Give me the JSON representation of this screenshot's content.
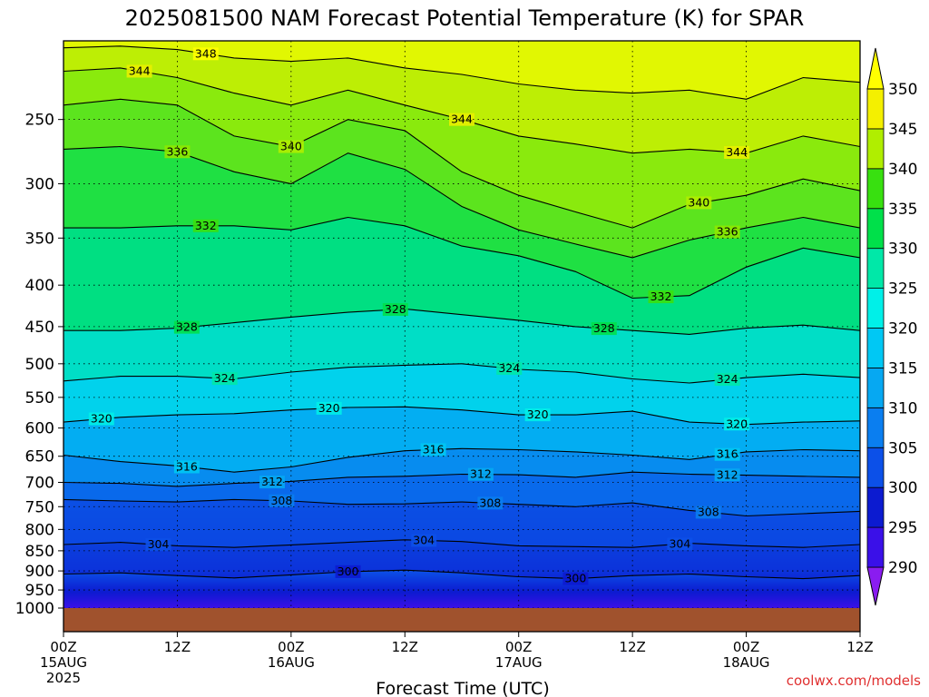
{
  "chart_data": {
    "type": "heatmap",
    "title": "2025081500 NAM Forecast Potential Temperature (K) for SPAR",
    "xlabel": "Forecast Time (UTC)",
    "ylabel": "",
    "credit": "coolwx.com/models",
    "x_ticks": [
      {
        "hour": 0,
        "lines": [
          "00Z",
          "15AUG",
          "2025"
        ]
      },
      {
        "hour": 12,
        "lines": [
          "12Z"
        ]
      },
      {
        "hour": 24,
        "lines": [
          "00Z",
          "16AUG"
        ]
      },
      {
        "hour": 36,
        "lines": [
          "12Z"
        ]
      },
      {
        "hour": 48,
        "lines": [
          "00Z",
          "17AUG"
        ]
      },
      {
        "hour": 60,
        "lines": [
          "12Z"
        ]
      },
      {
        "hour": 72,
        "lines": [
          "00Z",
          "18AUG"
        ]
      },
      {
        "hour": 84,
        "lines": [
          "12Z"
        ]
      }
    ],
    "xlim": [
      0,
      84
    ],
    "y_ticks": [
      250,
      300,
      350,
      400,
      450,
      500,
      550,
      600,
      650,
      700,
      750,
      800,
      850,
      900,
      950,
      1000
    ],
    "y_label_ticks": [
      "250",
      "300",
      "350",
      "400",
      "450",
      "500",
      "550",
      "600",
      "650",
      "700",
      "750",
      "800",
      "850",
      "900",
      "950",
      "1000"
    ],
    "ylim": [
      1000,
      200
    ],
    "y_scale": "log pressure (hPa)",
    "grid": true,
    "surface_color": "#a0522d",
    "colorbar": {
      "levels": [
        290,
        295,
        300,
        305,
        310,
        315,
        320,
        325,
        330,
        335,
        340,
        345,
        350
      ],
      "labels": [
        "290",
        "295",
        "300",
        "305",
        "310",
        "315",
        "320",
        "325",
        "330",
        "335",
        "340",
        "345",
        "350"
      ],
      "colors": [
        "#8a1cf0",
        "#3a10e8",
        "#0c1bd0",
        "#0c50e8",
        "#0a7ef0",
        "#06a8f2",
        "#00c8f4",
        "#00f0e8",
        "#00e8a8",
        "#00e04a",
        "#38e010",
        "#b0ee00",
        "#f4f000",
        "#ffff00"
      ]
    },
    "contour_series": [
      {
        "value": 300,
        "label": "300",
        "pressures": [
          908,
          905,
          912,
          918,
          910,
          902,
          898,
          905,
          915,
          920,
          912,
          908,
          915,
          920,
          912
        ]
      },
      {
        "value": 304,
        "label": "304",
        "pressures": [
          835,
          830,
          838,
          842,
          836,
          830,
          824,
          828,
          838,
          840,
          842,
          832,
          838,
          842,
          835
        ]
      },
      {
        "value": 308,
        "label": "308",
        "pressures": [
          735,
          738,
          740,
          735,
          738,
          745,
          744,
          740,
          745,
          750,
          742,
          758,
          770,
          765,
          760
        ]
      },
      {
        "value": 312,
        "label": "312",
        "pressures": [
          700,
          702,
          708,
          702,
          698,
          690,
          688,
          684,
          685,
          690,
          680,
          684,
          686,
          688,
          690
        ]
      },
      {
        "value": 316,
        "label": "316",
        "pressures": [
          648,
          660,
          668,
          680,
          670,
          652,
          640,
          636,
          638,
          642,
          648,
          656,
          642,
          638,
          640
        ]
      },
      {
        "value": 320,
        "label": "320",
        "pressures": [
          590,
          582,
          578,
          576,
          570,
          566,
          565,
          570,
          578,
          578,
          572,
          590,
          594,
          590,
          588
        ]
      },
      {
        "value": 324,
        "label": "324",
        "pressures": [
          525,
          518,
          518,
          522,
          512,
          505,
          502,
          500,
          508,
          512,
          522,
          528,
          520,
          515,
          520
        ]
      },
      {
        "value": 328,
        "label": "328",
        "pressures": [
          455,
          455,
          452,
          445,
          438,
          432,
          428,
          435,
          442,
          450,
          455,
          460,
          452,
          448,
          455
        ]
      },
      {
        "value": 332,
        "label": "332",
        "pressures": [
          340,
          340,
          338,
          338,
          342,
          330,
          338,
          358,
          368,
          385,
          415,
          412,
          380,
          360,
          370
        ]
      },
      {
        "value": 336,
        "label": "336",
        "pressures": [
          272,
          270,
          274,
          290,
          300,
          275,
          288,
          320,
          342,
          356,
          370,
          352,
          340,
          330,
          340
        ]
      },
      {
        "value": 340,
        "label": "340",
        "pressures": [
          240,
          236,
          240,
          262,
          270,
          250,
          258,
          290,
          310,
          325,
          340,
          318,
          310,
          296,
          306
        ]
      },
      {
        "value": 344,
        "label": "344",
        "pressures": [
          218,
          216,
          222,
          232,
          240,
          230,
          240,
          250,
          262,
          268,
          275,
          272,
          275,
          262,
          270
        ]
      },
      {
        "value": 348,
        "label": "348",
        "pressures": [
          204,
          203,
          205,
          210,
          212,
          210,
          216,
          220,
          226,
          230,
          232,
          230,
          236,
          222,
          225
        ]
      }
    ],
    "contour_x_hours": [
      0,
      6,
      12,
      18,
      24,
      30,
      36,
      42,
      48,
      54,
      60,
      66,
      72,
      78,
      84
    ],
    "contour_label_positions": [
      {
        "value": 348,
        "hours": [
          15
        ]
      },
      {
        "value": 344,
        "hours": [
          8,
          42,
          71
        ]
      },
      {
        "value": 340,
        "hours": [
          24,
          67
        ]
      },
      {
        "value": 336,
        "hours": [
          12,
          70
        ]
      },
      {
        "value": 332,
        "hours": [
          15,
          63
        ]
      },
      {
        "value": 328,
        "hours": [
          13,
          35,
          57
        ]
      },
      {
        "value": 324,
        "hours": [
          17,
          47,
          70
        ]
      },
      {
        "value": 320,
        "hours": [
          4,
          28,
          50,
          71
        ]
      },
      {
        "value": 316,
        "hours": [
          13,
          39,
          70
        ]
      },
      {
        "value": 312,
        "hours": [
          22,
          44,
          70
        ]
      },
      {
        "value": 308,
        "hours": [
          23,
          45,
          68
        ]
      },
      {
        "value": 304,
        "hours": [
          10,
          38,
          65
        ]
      },
      {
        "value": 300,
        "hours": [
          30,
          54
        ]
      }
    ]
  }
}
